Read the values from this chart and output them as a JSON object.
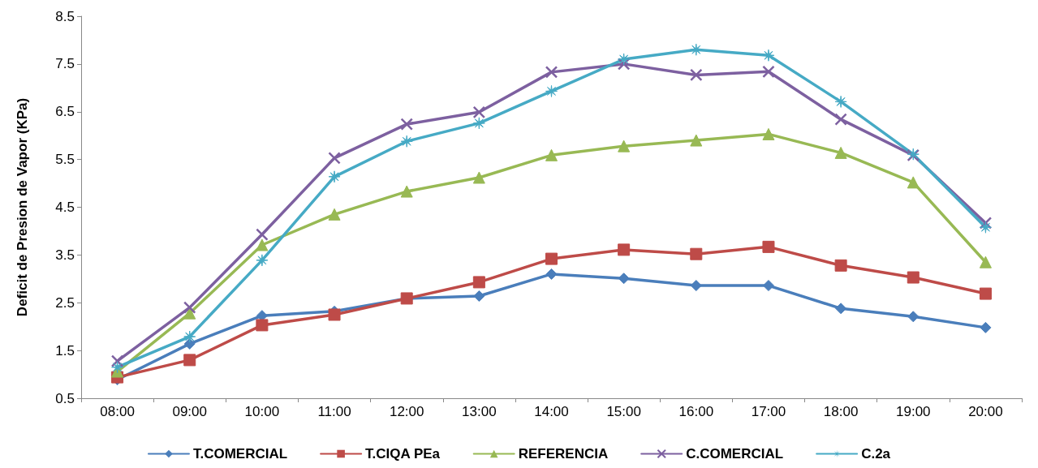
{
  "chart_data": {
    "type": "line",
    "ylabel": "Deficit de Presion de Vapor (KPa)",
    "categories": [
      "08:00",
      "09:00",
      "10:00",
      "11:00",
      "12:00",
      "13:00",
      "14:00",
      "15:00",
      "16:00",
      "17:00",
      "18:00",
      "19:00",
      "20:00"
    ],
    "series": [
      {
        "name": "T.COMERCIAL",
        "color": "#4a7ebb",
        "marker": "diamond",
        "values": [
          0.89,
          1.64,
          2.23,
          2.32,
          2.59,
          2.64,
          3.1,
          3.01,
          2.86,
          2.86,
          2.38,
          2.21,
          1.98
        ]
      },
      {
        "name": "T.CIQA PEa",
        "color": "#be4b48",
        "marker": "square",
        "values": [
          0.94,
          1.3,
          2.03,
          2.25,
          2.59,
          2.93,
          3.42,
          3.61,
          3.52,
          3.67,
          3.28,
          3.03,
          2.69
        ]
      },
      {
        "name": "REFERENCIA",
        "color": "#98b954",
        "marker": "triangle",
        "values": [
          1.06,
          2.28,
          3.71,
          4.35,
          4.83,
          5.12,
          5.59,
          5.78,
          5.9,
          6.03,
          5.64,
          5.02,
          3.35
        ]
      },
      {
        "name": "C.COMERCIAL",
        "color": "#7d60a0",
        "marker": "cross",
        "values": [
          1.28,
          2.4,
          3.93,
          5.53,
          6.24,
          6.49,
          7.33,
          7.5,
          7.27,
          7.34,
          6.34,
          5.59,
          4.17
        ]
      },
      {
        "name": "C.2a",
        "color": "#46aac5",
        "marker": "star",
        "values": [
          1.15,
          1.79,
          3.39,
          5.14,
          5.88,
          6.26,
          6.93,
          7.6,
          7.8,
          7.68,
          6.71,
          5.61,
          4.08
        ]
      }
    ],
    "ylim": [
      0.5,
      8.5
    ],
    "yticks": [
      0.5,
      1.5,
      2.5,
      3.5,
      4.5,
      5.5,
      6.5,
      7.5,
      8.5
    ],
    "grid": false,
    "legend": "bottom",
    "line_style": "solid"
  }
}
